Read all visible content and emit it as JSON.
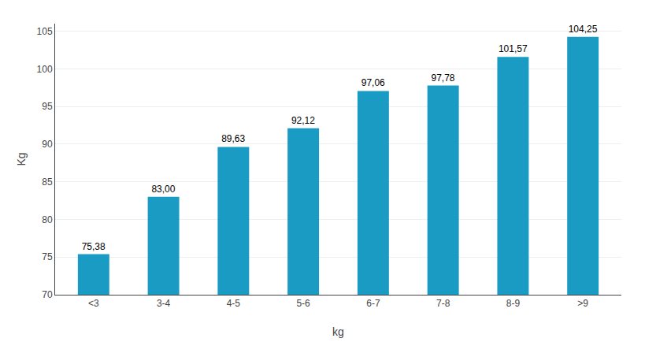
{
  "chart_data": {
    "type": "bar",
    "categories": [
      "<3",
      "3-4",
      "4-5",
      "5-6",
      "6-7",
      "7-8",
      "8-9",
      ">9"
    ],
    "values": [
      75.38,
      83.0,
      89.63,
      92.12,
      97.06,
      97.78,
      101.57,
      104.25
    ],
    "value_labels": [
      "75,38",
      "83,00",
      "89,63",
      "92,12",
      "97,06",
      "97,78",
      "101,57",
      "104,25"
    ],
    "data_labels": true,
    "color": "#1a9bc4",
    "xlabel": "kg",
    "ylabel": "Kg",
    "ylim": [
      70,
      106
    ],
    "yticks": [
      70,
      75,
      80,
      85,
      90,
      95,
      100,
      105
    ],
    "grid": true
  }
}
